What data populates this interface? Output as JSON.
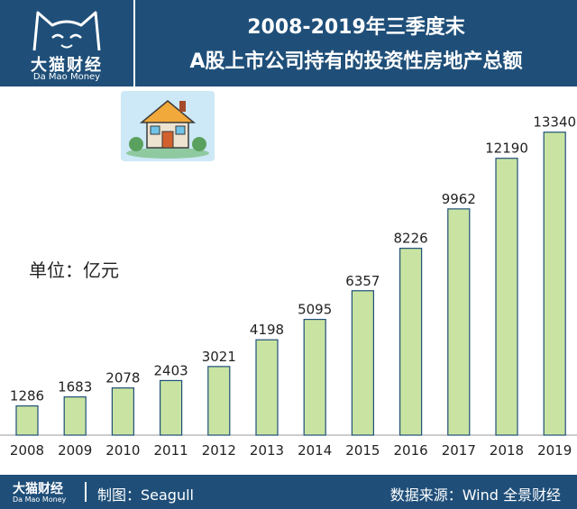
{
  "brand": {
    "name_cn": "大猫财经",
    "name_en": "Da Mao Money"
  },
  "title": {
    "line1": "2008-2019年三季度末",
    "line2": "A股上市公司持有的投资性房地产总额"
  },
  "unit_label": "单位：亿元",
  "footer": {
    "brand_cn": "大猫财经",
    "brand_en": "Da Mao Money",
    "credit": "制图：Seagull",
    "source": "数据来源：Wind  全景财经"
  },
  "colors": {
    "header_bg": "#1f4f79",
    "bar_fill": "#c9e4a2",
    "bar_stroke": "#1f4f79"
  },
  "chart_data": {
    "type": "bar",
    "title": "2008-2019年三季度末 A股上市公司持有的投资性房地产总额",
    "ylabel": "单位：亿元",
    "xlabel": "",
    "categories": [
      "2008",
      "2009",
      "2010",
      "2011",
      "2012",
      "2013",
      "2014",
      "2015",
      "2016",
      "2017",
      "2018",
      "2019"
    ],
    "values": [
      1286,
      1683,
      2078,
      2403,
      3021,
      4198,
      5095,
      6357,
      8226,
      9962,
      12190,
      13340
    ],
    "ylim": [
      0,
      14400
    ],
    "grid": false,
    "legend": "none"
  }
}
